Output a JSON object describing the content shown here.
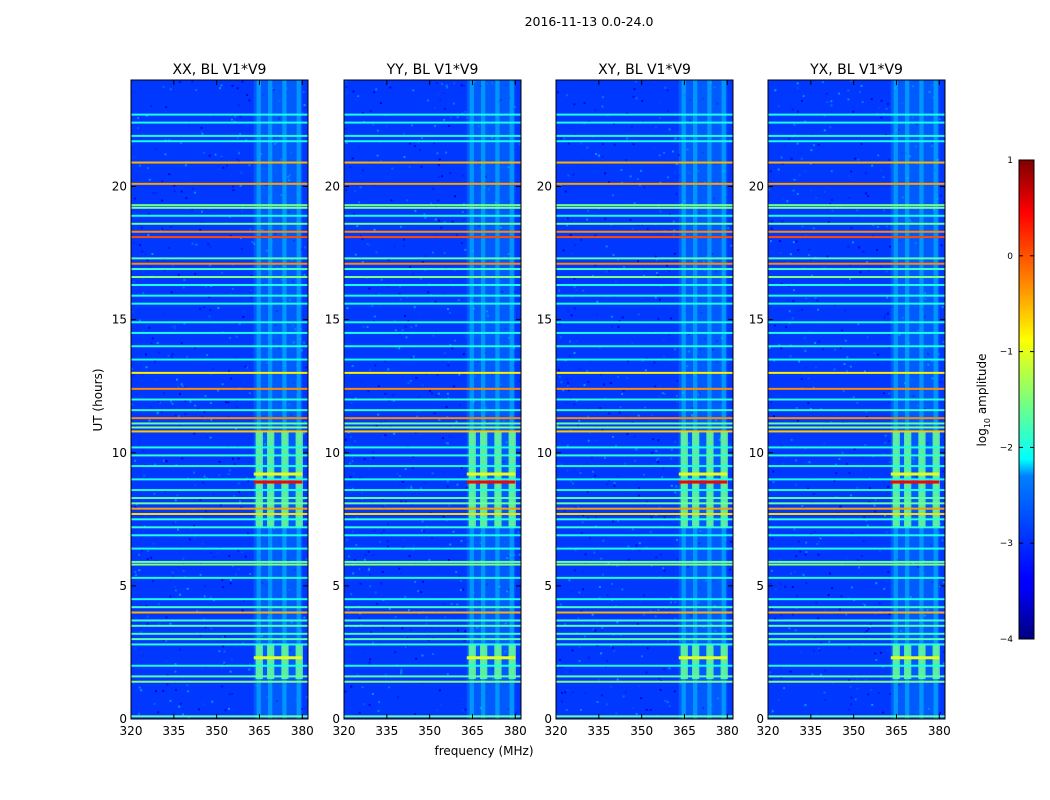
{
  "suptitle": "2016-11-13 0.0-24.0",
  "chart_data": {
    "type": "heatmap",
    "title": "2016-11-13 0.0-24.0",
    "xlabel": "frequency (MHz)",
    "ylabel": "UT (hours)",
    "xlim": [
      320,
      382
    ],
    "ylim": [
      0,
      24
    ],
    "xticks": [
      320,
      335,
      350,
      365,
      380
    ],
    "yticks": [
      0,
      5,
      10,
      15,
      20
    ],
    "colorbar": {
      "label_prefix": "log",
      "label_sub": "10",
      "label_suffix": " amplitude",
      "range": [
        -4,
        1
      ],
      "ticks": [
        -4,
        -3,
        -2,
        -1,
        0,
        1
      ],
      "tick_labels": [
        "−4",
        "−3",
        "−2",
        "−1",
        "0",
        "1"
      ],
      "colormap": "jet"
    },
    "panels": [
      {
        "title": "XX, BL V1*V9",
        "polarization": "XX"
      },
      {
        "title": "YY, BL V1*V9",
        "polarization": "YY"
      },
      {
        "title": "XY, BL V1*V9",
        "polarization": "XY"
      },
      {
        "title": "YX, BL V1*V9",
        "polarization": "YX"
      }
    ],
    "background_level": -3.1,
    "rfi_columns_mhz": [
      [
        364,
        365.5
      ],
      [
        368,
        369.5
      ],
      [
        373,
        374.5
      ],
      [
        378,
        379.5
      ]
    ],
    "strong_blocks": [
      {
        "f0": 363,
        "f1": 380,
        "t0": 7.2,
        "t1": 10.8,
        "level": -1.6
      },
      {
        "f0": 363,
        "f1": 380,
        "t0": 1.5,
        "t1": 2.8,
        "level": -1.6
      }
    ],
    "hot_lines": [
      {
        "t": 8.9,
        "level": 0.4,
        "f0": 363,
        "f1": 380
      },
      {
        "t": 9.2,
        "level": -1.0,
        "f0": 363,
        "f1": 380
      },
      {
        "t": 2.3,
        "level": -1.0,
        "f0": 363,
        "f1": 380
      }
    ],
    "rfi_rows": [
      {
        "t": 0.1,
        "level": -1.6
      },
      {
        "t": 1.4,
        "level": -1.5
      },
      {
        "t": 1.6,
        "level": -1.7
      },
      {
        "t": 2.0,
        "level": -2.0
      },
      {
        "t": 2.8,
        "level": -1.9
      },
      {
        "t": 3.0,
        "level": -1.7
      },
      {
        "t": 3.2,
        "level": -1.8
      },
      {
        "t": 3.5,
        "level": -1.7
      },
      {
        "t": 3.7,
        "level": -1.8
      },
      {
        "t": 4.0,
        "level": -0.5
      },
      {
        "t": 4.2,
        "level": -1.8
      },
      {
        "t": 4.5,
        "level": -2.0
      },
      {
        "t": 5.3,
        "level": -2.0
      },
      {
        "t": 5.8,
        "level": -1.5
      },
      {
        "t": 5.9,
        "level": -1.6
      },
      {
        "t": 6.4,
        "level": -2.0
      },
      {
        "t": 6.9,
        "level": -2.0
      },
      {
        "t": 7.2,
        "level": -1.9
      },
      {
        "t": 7.5,
        "level": -1.9
      },
      {
        "t": 7.7,
        "level": -0.7
      },
      {
        "t": 7.9,
        "level": -0.4
      },
      {
        "t": 8.1,
        "level": -1.6
      },
      {
        "t": 8.3,
        "level": -1.7
      },
      {
        "t": 8.6,
        "level": -2.0
      },
      {
        "t": 9.0,
        "level": -2.0
      },
      {
        "t": 9.5,
        "level": -2.0
      },
      {
        "t": 9.9,
        "level": -1.9
      },
      {
        "t": 10.2,
        "level": -2.0
      },
      {
        "t": 10.8,
        "level": -0.6
      },
      {
        "t": 10.95,
        "level": -1.5
      },
      {
        "t": 11.1,
        "level": -1.6
      },
      {
        "t": 11.3,
        "level": -0.3
      },
      {
        "t": 11.6,
        "level": -1.9
      },
      {
        "t": 12.0,
        "level": -1.9
      },
      {
        "t": 12.4,
        "level": -0.3
      },
      {
        "t": 13.0,
        "level": -0.8
      },
      {
        "t": 13.5,
        "level": -2.0
      },
      {
        "t": 14.0,
        "level": -2.0
      },
      {
        "t": 14.5,
        "level": -2.0
      },
      {
        "t": 14.9,
        "level": -2.0
      },
      {
        "t": 15.6,
        "level": -2.0
      },
      {
        "t": 15.9,
        "level": -2.0
      },
      {
        "t": 16.3,
        "level": -2.0
      },
      {
        "t": 16.6,
        "level": -1.5
      },
      {
        "t": 16.9,
        "level": -1.8
      },
      {
        "t": 17.1,
        "level": -0.3
      },
      {
        "t": 17.3,
        "level": -1.7
      },
      {
        "t": 18.1,
        "level": 0.0
      },
      {
        "t": 18.3,
        "level": -0.3
      },
      {
        "t": 18.6,
        "level": -1.6
      },
      {
        "t": 18.9,
        "level": -2.0
      },
      {
        "t": 19.2,
        "level": -1.5
      },
      {
        "t": 19.3,
        "level": -1.6
      },
      {
        "t": 20.1,
        "level": -0.4
      },
      {
        "t": 20.9,
        "level": -0.5
      },
      {
        "t": 21.7,
        "level": -2.0
      },
      {
        "t": 21.9,
        "level": -2.0
      },
      {
        "t": 22.4,
        "level": -2.0
      },
      {
        "t": 22.7,
        "level": -2.0
      }
    ]
  }
}
